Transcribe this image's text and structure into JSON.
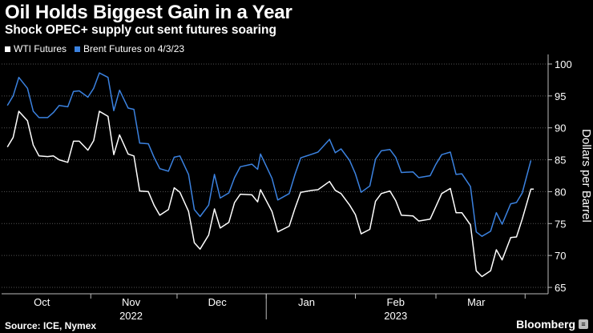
{
  "header": {
    "title": "Oil Holds Biggest Gain in a Year",
    "subtitle": "Shock OPEC+ supply cut sent futures soaring"
  },
  "legend": {
    "items": [
      {
        "label": "WTI Futures",
        "color": "#ffffff"
      },
      {
        "label": "Brent Futures on 4/3/23",
        "color": "#3b82e0"
      }
    ]
  },
  "footer": {
    "source": "Source: ICE, Nymex",
    "brand": "Bloomberg"
  },
  "chart_data": {
    "type": "line",
    "title": "Oil Holds Biggest Gain in a Year",
    "subtitle": "Shock OPEC+ supply cut sent futures soaring",
    "xlabel": "",
    "ylabel": "Dollars per Barrel",
    "ylim": [
      64,
      101
    ],
    "yticks": [
      65,
      70,
      75,
      80,
      85,
      90,
      95,
      100
    ],
    "grid": true,
    "y_axis_side": "right",
    "legend_position": "top-left",
    "x_ticks": [
      {
        "date": "2022-10-15",
        "label": "Oct"
      },
      {
        "date": "2022-11-15",
        "label": "Nov"
      },
      {
        "date": "2022-12-15",
        "label": "Dec"
      },
      {
        "date": "2023-01-15",
        "label": "Jan"
      },
      {
        "date": "2023-02-15",
        "label": "Feb"
      },
      {
        "date": "2023-03-15",
        "label": "Mar"
      }
    ],
    "year_labels": [
      {
        "date": "2022-11-15",
        "label": "2022"
      },
      {
        "date": "2023-02-15",
        "label": "2023"
      }
    ],
    "x_range": [
      "2022-10-01",
      "2023-04-09"
    ],
    "series": [
      {
        "name": "WTI Futures",
        "color": "#ffffff",
        "points": [
          [
            "2022-10-03",
            87.0
          ],
          [
            "2022-10-05",
            88.5
          ],
          [
            "2022-10-07",
            92.6
          ],
          [
            "2022-10-10",
            91.1
          ],
          [
            "2022-10-12",
            87.3
          ],
          [
            "2022-10-14",
            85.6
          ],
          [
            "2022-10-17",
            85.5
          ],
          [
            "2022-10-19",
            85.6
          ],
          [
            "2022-10-21",
            85.0
          ],
          [
            "2022-10-24",
            84.6
          ],
          [
            "2022-10-26",
            87.9
          ],
          [
            "2022-10-28",
            87.9
          ],
          [
            "2022-10-31",
            86.5
          ],
          [
            "2022-11-02",
            88.0
          ],
          [
            "2022-11-04",
            92.6
          ],
          [
            "2022-11-07",
            91.8
          ],
          [
            "2022-11-09",
            85.8
          ],
          [
            "2022-11-11",
            88.9
          ],
          [
            "2022-11-14",
            85.9
          ],
          [
            "2022-11-16",
            85.6
          ],
          [
            "2022-11-18",
            80.1
          ],
          [
            "2022-11-21",
            80.0
          ],
          [
            "2022-11-23",
            77.9
          ],
          [
            "2022-11-25",
            76.3
          ],
          [
            "2022-11-28",
            77.2
          ],
          [
            "2022-11-30",
            80.6
          ],
          [
            "2022-12-02",
            79.9
          ],
          [
            "2022-12-05",
            76.9
          ],
          [
            "2022-12-07",
            72.0
          ],
          [
            "2022-12-09",
            71.0
          ],
          [
            "2022-12-12",
            73.2
          ],
          [
            "2022-12-14",
            77.3
          ],
          [
            "2022-12-16",
            74.3
          ],
          [
            "2022-12-19",
            75.2
          ],
          [
            "2022-12-21",
            78.3
          ],
          [
            "2022-12-23",
            79.6
          ],
          [
            "2022-12-27",
            79.5
          ],
          [
            "2022-12-29",
            78.4
          ],
          [
            "2022-12-30",
            80.3
          ],
          [
            "2023-01-03",
            76.9
          ],
          [
            "2023-01-05",
            73.7
          ],
          [
            "2023-01-09",
            74.6
          ],
          [
            "2023-01-11",
            77.4
          ],
          [
            "2023-01-13",
            79.9
          ],
          [
            "2023-01-17",
            80.2
          ],
          [
            "2023-01-19",
            80.3
          ],
          [
            "2023-01-23",
            81.6
          ],
          [
            "2023-01-25",
            80.2
          ],
          [
            "2023-01-27",
            79.7
          ],
          [
            "2023-01-30",
            77.9
          ],
          [
            "2023-02-01",
            76.4
          ],
          [
            "2023-02-03",
            73.4
          ],
          [
            "2023-02-06",
            74.1
          ],
          [
            "2023-02-08",
            78.5
          ],
          [
            "2023-02-10",
            79.7
          ],
          [
            "2023-02-13",
            80.1
          ],
          [
            "2023-02-15",
            78.6
          ],
          [
            "2023-02-17",
            76.3
          ],
          [
            "2023-02-21",
            76.2
          ],
          [
            "2023-02-23",
            75.4
          ],
          [
            "2023-02-27",
            75.7
          ],
          [
            "2023-03-01",
            77.7
          ],
          [
            "2023-03-03",
            79.7
          ],
          [
            "2023-03-06",
            80.5
          ],
          [
            "2023-03-08",
            76.7
          ],
          [
            "2023-03-10",
            76.7
          ],
          [
            "2023-03-13",
            74.8
          ],
          [
            "2023-03-15",
            67.6
          ],
          [
            "2023-03-17",
            66.7
          ],
          [
            "2023-03-20",
            67.6
          ],
          [
            "2023-03-22",
            70.9
          ],
          [
            "2023-03-24",
            69.3
          ],
          [
            "2023-03-27",
            72.8
          ],
          [
            "2023-03-29",
            72.9
          ],
          [
            "2023-03-31",
            75.7
          ],
          [
            "2023-04-03",
            80.4
          ],
          [
            "2023-04-04",
            80.4
          ]
        ]
      },
      {
        "name": "Brent Futures on 4/3/23",
        "color": "#3b82e0",
        "points": [
          [
            "2022-10-03",
            93.5
          ],
          [
            "2022-10-05",
            95.0
          ],
          [
            "2022-10-07",
            97.9
          ],
          [
            "2022-10-10",
            96.2
          ],
          [
            "2022-10-12",
            92.6
          ],
          [
            "2022-10-14",
            91.6
          ],
          [
            "2022-10-17",
            91.6
          ],
          [
            "2022-10-19",
            92.4
          ],
          [
            "2022-10-21",
            93.5
          ],
          [
            "2022-10-24",
            93.3
          ],
          [
            "2022-10-26",
            95.7
          ],
          [
            "2022-10-28",
            95.8
          ],
          [
            "2022-10-31",
            94.8
          ],
          [
            "2022-11-02",
            96.2
          ],
          [
            "2022-11-04",
            98.6
          ],
          [
            "2022-11-07",
            97.9
          ],
          [
            "2022-11-09",
            92.7
          ],
          [
            "2022-11-11",
            95.9
          ],
          [
            "2022-11-14",
            93.1
          ],
          [
            "2022-11-16",
            92.9
          ],
          [
            "2022-11-18",
            87.6
          ],
          [
            "2022-11-21",
            87.5
          ],
          [
            "2022-11-23",
            85.4
          ],
          [
            "2022-11-25",
            83.6
          ],
          [
            "2022-11-28",
            83.2
          ],
          [
            "2022-11-30",
            85.4
          ],
          [
            "2022-12-02",
            85.6
          ],
          [
            "2022-12-05",
            82.7
          ],
          [
            "2022-12-07",
            77.2
          ],
          [
            "2022-12-09",
            76.1
          ],
          [
            "2022-12-12",
            77.9
          ],
          [
            "2022-12-14",
            82.7
          ],
          [
            "2022-12-16",
            79.0
          ],
          [
            "2022-12-19",
            79.8
          ],
          [
            "2022-12-21",
            82.2
          ],
          [
            "2022-12-23",
            83.9
          ],
          [
            "2022-12-27",
            84.3
          ],
          [
            "2022-12-29",
            83.5
          ],
          [
            "2022-12-30",
            85.9
          ],
          [
            "2023-01-03",
            82.1
          ],
          [
            "2023-01-05",
            78.7
          ],
          [
            "2023-01-09",
            79.7
          ],
          [
            "2023-01-11",
            82.7
          ],
          [
            "2023-01-13",
            85.3
          ],
          [
            "2023-01-17",
            85.9
          ],
          [
            "2023-01-19",
            86.2
          ],
          [
            "2023-01-23",
            88.2
          ],
          [
            "2023-01-25",
            86.1
          ],
          [
            "2023-01-27",
            86.7
          ],
          [
            "2023-01-30",
            84.9
          ],
          [
            "2023-02-01",
            82.8
          ],
          [
            "2023-02-03",
            79.9
          ],
          [
            "2023-02-06",
            80.9
          ],
          [
            "2023-02-08",
            85.1
          ],
          [
            "2023-02-10",
            86.4
          ],
          [
            "2023-02-13",
            86.6
          ],
          [
            "2023-02-15",
            85.4
          ],
          [
            "2023-02-17",
            83.0
          ],
          [
            "2023-02-21",
            83.1
          ],
          [
            "2023-02-23",
            82.2
          ],
          [
            "2023-02-27",
            82.5
          ],
          [
            "2023-03-01",
            84.3
          ],
          [
            "2023-03-03",
            85.8
          ],
          [
            "2023-03-06",
            86.2
          ],
          [
            "2023-03-08",
            82.7
          ],
          [
            "2023-03-10",
            82.8
          ],
          [
            "2023-03-13",
            80.8
          ],
          [
            "2023-03-15",
            73.7
          ],
          [
            "2023-03-17",
            73.0
          ],
          [
            "2023-03-20",
            73.8
          ],
          [
            "2023-03-22",
            76.7
          ],
          [
            "2023-03-24",
            74.9
          ],
          [
            "2023-03-27",
            78.1
          ],
          [
            "2023-03-29",
            78.3
          ],
          [
            "2023-03-31",
            79.8
          ],
          [
            "2023-04-03",
            84.9
          ]
        ]
      }
    ]
  }
}
